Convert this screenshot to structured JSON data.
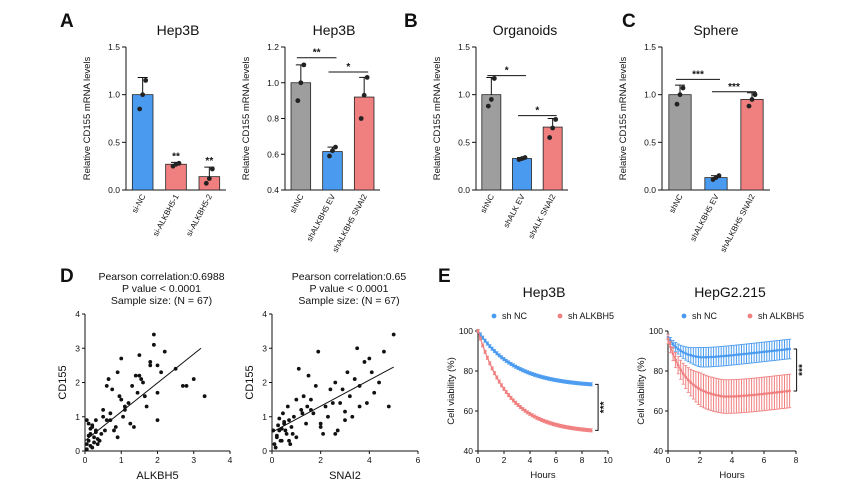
{
  "figure": {
    "panels": {
      "A": "A",
      "B": "B",
      "C": "C",
      "D": "D",
      "E": "E"
    }
  },
  "colors": {
    "blue": "#4a9bf0",
    "gray": "#9e9e9e",
    "red": "#f07f7f",
    "blue_line": "#4a9bf0",
    "red_line": "#f07f7f"
  },
  "chart_data": [
    {
      "id": "A1",
      "type": "bar",
      "title": "Hep3B",
      "ylabel": "Relative CD155 mRNA levels",
      "ylim": [
        0,
        1.5
      ],
      "yticks": [
        "0.0",
        "0.5",
        "1.0",
        "1.5"
      ],
      "categories": [
        "si-NC",
        "si-ALKBH5-1",
        "si-ALKBH5-2"
      ],
      "values": [
        1.0,
        0.27,
        0.14
      ],
      "errors": [
        0.18,
        0.02,
        0.1
      ],
      "colors": [
        "blue",
        "red",
        "red"
      ],
      "points": [
        [
          0.85,
          1.0,
          1.15
        ],
        [
          0.25,
          0.27,
          0.28
        ],
        [
          0.07,
          0.12,
          0.22
        ]
      ],
      "sig_above": [
        "",
        "**",
        "**"
      ],
      "brackets": []
    },
    {
      "id": "A2",
      "type": "bar",
      "title": "Hep3B",
      "ylabel": "Relative CD155 mRNA levels",
      "ylim": [
        0.4,
        1.2
      ],
      "yticks": [
        "0.4",
        "0.6",
        "0.8",
        "1.0",
        "1.2"
      ],
      "categories": [
        "shNC",
        "shALKBH5 EV",
        "shALKBH5 SNAI2"
      ],
      "values": [
        1.0,
        0.615,
        0.92
      ],
      "errors": [
        0.1,
        0.025,
        0.11
      ],
      "colors": [
        "gray",
        "blue",
        "red"
      ],
      "points": [
        [
          0.9,
          1.0,
          1.1
        ],
        [
          0.59,
          0.62,
          0.64
        ],
        [
          0.8,
          0.93,
          1.03
        ]
      ],
      "sig_above": [
        "",
        "",
        ""
      ],
      "brackets": [
        {
          "from": 0,
          "to": 1,
          "level": 1.14,
          "label": "**"
        },
        {
          "from": 1,
          "to": 2,
          "level": 1.06,
          "label": "*"
        }
      ]
    },
    {
      "id": "B",
      "type": "bar",
      "title": "Organoids",
      "ylabel": "Relative CD155 mRNA levels",
      "ylim": [
        0,
        1.5
      ],
      "yticks": [
        "0.0",
        "0.5",
        "1.0",
        "1.5"
      ],
      "categories": [
        "shNC",
        "shALK EV",
        "shALK SNAI2"
      ],
      "values": [
        1.0,
        0.33,
        0.66
      ],
      "errors": [
        0.18,
        0.01,
        0.09
      ],
      "colors": [
        "gray",
        "blue",
        "red"
      ],
      "points": [
        [
          0.88,
          0.95,
          1.17
        ],
        [
          0.32,
          0.33,
          0.34
        ],
        [
          0.55,
          0.65,
          0.74
        ]
      ],
      "sig_above": [
        "",
        "",
        ""
      ],
      "brackets": [
        {
          "from": 0,
          "to": 1,
          "level": 1.2,
          "label": "*"
        },
        {
          "from": 1,
          "to": 2,
          "level": 0.78,
          "label": "*"
        }
      ]
    },
    {
      "id": "C",
      "type": "bar",
      "title": "Sphere",
      "ylabel": "Relative CD155 mRNA levels",
      "ylim": [
        0,
        1.5
      ],
      "yticks": [
        "0.0",
        "0.5",
        "1.0",
        "1.5"
      ],
      "categories": [
        "shNC",
        "shALKBH5 EV",
        "shALKBH5 SNAI2"
      ],
      "values": [
        1.0,
        0.13,
        0.95
      ],
      "errors": [
        0.1,
        0.02,
        0.07
      ],
      "colors": [
        "gray",
        "blue",
        "red"
      ],
      "points": [
        [
          0.9,
          1.0,
          1.07
        ],
        [
          0.11,
          0.13,
          0.15
        ],
        [
          0.88,
          0.95,
          1.0
        ]
      ],
      "sig_above": [
        "",
        "",
        ""
      ],
      "brackets": [
        {
          "from": 0,
          "to": 1,
          "level": 1.16,
          "label": "***"
        },
        {
          "from": 1,
          "to": 2,
          "level": 1.03,
          "label": "***"
        }
      ]
    },
    {
      "id": "D1",
      "type": "scatter",
      "annotation": [
        "Pearson correlation:0.6988",
        "P value < 0.0001",
        "Sample size: (N = 67)"
      ],
      "xlabel": "ALKBH5",
      "ylabel": "CD155",
      "xlim": [
        0,
        4
      ],
      "ylim": [
        0,
        4
      ],
      "xticks": [
        "0",
        "1",
        "2",
        "3",
        "4"
      ],
      "yticks": [
        "0",
        "1",
        "2",
        "3",
        "4"
      ],
      "fit": {
        "x": [
          0,
          3.2
        ],
        "y": [
          0.3,
          3.0
        ]
      },
      "x": [
        0.05,
        0.1,
        0.15,
        0.2,
        0.25,
        0.3,
        0.35,
        0.1,
        0.2,
        0.3,
        0.4,
        0.45,
        0.5,
        0.55,
        0.05,
        0.15,
        0.25,
        0.35,
        0.6,
        0.7,
        0.8,
        0.9,
        1.0,
        1.1,
        0.65,
        0.75,
        0.85,
        0.95,
        1.05,
        1.2,
        1.3,
        1.4,
        1.5,
        1.6,
        1.7,
        1.8,
        1.9,
        2.0,
        2.1,
        2.2,
        1.25,
        1.35,
        1.45,
        1.55,
        1.65,
        0.5,
        0.6,
        0.4,
        0.3,
        0.2,
        0.1,
        2.5,
        2.7,
        2.8,
        3.0,
        3.3,
        1.0,
        1.9,
        2.0,
        0.9,
        0.7,
        1.1,
        1.5,
        1.8,
        2.0,
        0.15,
        0.05
      ],
      "y": [
        0.2,
        0.3,
        0.5,
        0.1,
        0.4,
        0.6,
        0.2,
        0.8,
        0.7,
        0.9,
        0.3,
        0.5,
        1.0,
        0.6,
        0.05,
        0.15,
        0.25,
        0.35,
        0.9,
        1.1,
        0.6,
        0.4,
        1.5,
        1.3,
        2.1,
        1.8,
        0.7,
        1.6,
        1.0,
        1.4,
        1.9,
        2.2,
        2.8,
        2.0,
        1.3,
        2.6,
        3.1,
        2.5,
        2.3,
        2.9,
        0.8,
        0.7,
        1.7,
        2.1,
        1.6,
        1.2,
        1.9,
        0.3,
        0.55,
        0.75,
        0.45,
        2.4,
        1.9,
        1.9,
        2.1,
        1.6,
        2.7,
        3.4,
        1.7,
        2.3,
        0.9,
        1.2,
        2.2,
        2.5,
        0.9,
        0.65,
        0.9
      ]
    },
    {
      "id": "D2",
      "type": "scatter",
      "annotation": [
        "Pearson correlation:0.65",
        "P value < 0.0001",
        "Sample size: (N = 67)"
      ],
      "xlabel": "SNAI2",
      "ylabel": "CD155",
      "xlim": [
        0,
        6
      ],
      "ylim": [
        0,
        4
      ],
      "xticks": [
        "0",
        "2",
        "4",
        "6"
      ],
      "yticks": [
        "0",
        "1",
        "2",
        "3",
        "4"
      ],
      "fit": {
        "x": [
          0,
          5.0
        ],
        "y": [
          0.55,
          2.45
        ]
      },
      "x": [
        0.1,
        0.2,
        0.3,
        0.4,
        0.5,
        0.6,
        0.7,
        0.8,
        0.9,
        1.0,
        0.15,
        0.25,
        0.35,
        0.45,
        0.55,
        1.2,
        1.4,
        1.6,
        1.8,
        2.0,
        2.2,
        2.4,
        2.6,
        2.8,
        3.0,
        1.1,
        1.3,
        1.5,
        1.7,
        1.9,
        2.1,
        2.3,
        3.2,
        3.4,
        3.6,
        3.8,
        4.0,
        4.2,
        4.4,
        4.6,
        0.05,
        0.65,
        0.75,
        0.85,
        1.25,
        1.45,
        2.5,
        2.7,
        2.9,
        3.1,
        3.3,
        3.5,
        4.8,
        5.0,
        4.1,
        3.9,
        0.3,
        0.5,
        0.7,
        1.0,
        1.6,
        2.0,
        2.6,
        3.0,
        3.6,
        0.2,
        0.4
      ],
      "y": [
        0.2,
        0.4,
        0.6,
        0.3,
        0.8,
        0.5,
        0.9,
        0.7,
        1.0,
        0.4,
        0.1,
        0.75,
        0.3,
        1.1,
        0.6,
        1.2,
        0.8,
        1.5,
        1.9,
        0.7,
        1.3,
        1.8,
        2.0,
        1.4,
        0.9,
        2.4,
        1.6,
        2.2,
        1.1,
        2.9,
        0.5,
        1.0,
        1.6,
        2.1,
        1.3,
        2.6,
        2.7,
        1.7,
        2.0,
        2.9,
        0.6,
        1.3,
        0.2,
        0.5,
        1.1,
        1.3,
        1.4,
        0.6,
        1.8,
        2.3,
        1.0,
        3.0,
        1.3,
        3.4,
        2.3,
        1.4,
        0.95,
        0.85,
        0.3,
        1.5,
        1.2,
        0.8,
        0.5,
        1.15,
        1.9,
        0.45,
        0.65
      ]
    },
    {
      "id": "E1",
      "type": "line",
      "title": "Hep3B",
      "xlabel": "Hours",
      "ylabel": "Cell viability (%)",
      "xlim": [
        0,
        10
      ],
      "ylim": [
        40,
        100
      ],
      "xticks": [
        "0",
        "2",
        "4",
        "6",
        "8",
        "10"
      ],
      "yticks": [
        "40",
        "60",
        "80",
        "100"
      ],
      "legend_position": "top",
      "sig": "***",
      "series": [
        {
          "name": "sh NC",
          "color": "blue_line",
          "start": 100,
          "end": 72,
          "rate": 0.35,
          "err": 0.8
        },
        {
          "name": "sh ALKBH5",
          "color": "red_line",
          "start": 100,
          "end": 49,
          "rate": 0.42,
          "err": 0.8
        }
      ],
      "x_end": 8.7
    },
    {
      "id": "E2",
      "type": "line",
      "title": "HepG2.215",
      "xlabel": "Hours",
      "ylabel": "Cell viability (%)",
      "xlim": [
        0,
        8
      ],
      "ylim": [
        40,
        100
      ],
      "xticks": [
        "0",
        "2",
        "4",
        "6",
        "8"
      ],
      "yticks": [
        "40",
        "60",
        "80",
        "100"
      ],
      "legend_position": "top",
      "sig": "***",
      "series": [
        {
          "name": "sh NC",
          "color": "blue_line",
          "kind": "dip",
          "start": 97,
          "min": 86,
          "end": 91,
          "err": 3.5
        },
        {
          "name": "sh ALKBH5",
          "color": "red_line",
          "kind": "decay",
          "start": 96,
          "min": 66,
          "end": 70,
          "err": 6
        }
      ],
      "x_end": 7.6
    }
  ]
}
